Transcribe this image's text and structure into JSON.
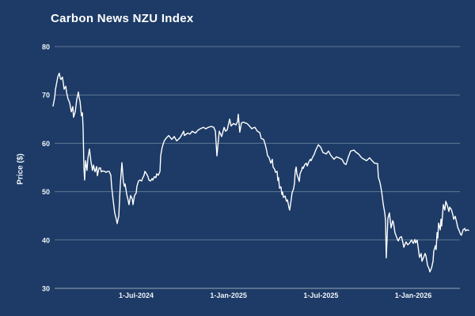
{
  "page": {
    "background_color": "#1d3b66"
  },
  "chart_data": {
    "type": "line",
    "title": "Carbon News NZU Index",
    "xlabel": "",
    "ylabel": "Price ($)",
    "ylim": [
      30,
      80
    ],
    "xlim_years": [
      2024.05,
      2026.25
    ],
    "grid": "horizontal-only",
    "legend_position": "none",
    "colors": {
      "background": "#1d3b66",
      "line": "#ffffff",
      "gridline": "rgba(255,255,255,0.30)",
      "axis_baseline": "rgba(255,255,255,0.55)",
      "tick_text": "#eef2f8",
      "title_text": "#ffffff"
    },
    "y_ticks": [
      30,
      40,
      50,
      60,
      70,
      80
    ],
    "x_ticks": [
      {
        "value": 2024.5,
        "label": "1-Jul-2024"
      },
      {
        "value": 2025.0,
        "label": "1-Jan-2025"
      },
      {
        "value": 2025.5,
        "label": "1-Jul-2025"
      },
      {
        "value": 2026.0,
        "label": "1-Jan-2026"
      }
    ],
    "series": [
      {
        "name": "NZU Index",
        "points": [
          [
            2024.05,
            67.7
          ],
          [
            2024.059,
            69.5
          ],
          [
            2024.063,
            71.1
          ],
          [
            2024.067,
            72.0
          ],
          [
            2024.076,
            73.8
          ],
          [
            2024.084,
            74.5
          ],
          [
            2024.089,
            73.5
          ],
          [
            2024.093,
            73.2
          ],
          [
            2024.101,
            73.7
          ],
          [
            2024.11,
            71.2
          ],
          [
            2024.119,
            71.8
          ],
          [
            2024.123,
            70.6
          ],
          [
            2024.131,
            69.2
          ],
          [
            2024.14,
            68.4
          ],
          [
            2024.149,
            66.5
          ],
          [
            2024.157,
            67.6
          ],
          [
            2024.161,
            65.4
          ],
          [
            2024.17,
            66.5
          ],
          [
            2024.179,
            69.2
          ],
          [
            2024.187,
            70.6
          ],
          [
            2024.191,
            69.5
          ],
          [
            2024.196,
            68.7
          ],
          [
            2024.204,
            65.7
          ],
          [
            2024.209,
            66.3
          ],
          [
            2024.213,
            63.0
          ],
          [
            2024.217,
            55.0
          ],
          [
            2024.221,
            52.4
          ],
          [
            2024.226,
            56.4
          ],
          [
            2024.234,
            54.4
          ],
          [
            2024.239,
            57.0
          ],
          [
            2024.247,
            58.8
          ],
          [
            2024.256,
            56.0
          ],
          [
            2024.264,
            54.4
          ],
          [
            2024.269,
            55.5
          ],
          [
            2024.277,
            54.1
          ],
          [
            2024.286,
            55.2
          ],
          [
            2024.29,
            53.3
          ],
          [
            2024.299,
            54.9
          ],
          [
            2024.307,
            54.9
          ],
          [
            2024.311,
            54.1
          ],
          [
            2024.32,
            54.3
          ],
          [
            2024.329,
            54.2
          ],
          [
            2024.337,
            54.0
          ],
          [
            2024.346,
            54.2
          ],
          [
            2024.354,
            54.2
          ],
          [
            2024.363,
            53.4
          ],
          [
            2024.367,
            51.1
          ],
          [
            2024.376,
            48.0
          ],
          [
            2024.384,
            45.6
          ],
          [
            2024.393,
            44.2
          ],
          [
            2024.397,
            43.4
          ],
          [
            2024.406,
            45.0
          ],
          [
            2024.414,
            51.3
          ],
          [
            2024.423,
            56.0
          ],
          [
            2024.431,
            52.0
          ],
          [
            2024.436,
            51.1
          ],
          [
            2024.44,
            51.6
          ],
          [
            2024.449,
            49.4
          ],
          [
            2024.457,
            48.1
          ],
          [
            2024.461,
            47.3
          ],
          [
            2024.47,
            49.2
          ],
          [
            2024.479,
            48.5
          ],
          [
            2024.483,
            47.3
          ],
          [
            2024.491,
            49.2
          ],
          [
            2024.5,
            49.7
          ],
          [
            2024.504,
            51.1
          ],
          [
            2024.513,
            52.2
          ],
          [
            2024.521,
            52.4
          ],
          [
            2024.53,
            52.2
          ],
          [
            2024.534,
            52.7
          ],
          [
            2024.543,
            53.4
          ],
          [
            2024.547,
            54.2
          ],
          [
            2024.556,
            53.7
          ],
          [
            2024.564,
            53.1
          ],
          [
            2024.569,
            52.4
          ],
          [
            2024.577,
            52.2
          ],
          [
            2024.586,
            52.7
          ],
          [
            2024.59,
            52.4
          ],
          [
            2024.599,
            53.1
          ],
          [
            2024.607,
            52.9
          ],
          [
            2024.611,
            53.7
          ],
          [
            2024.62,
            53.4
          ],
          [
            2024.629,
            54.2
          ],
          [
            2024.633,
            57.5
          ],
          [
            2024.641,
            59.2
          ],
          [
            2024.65,
            60.3
          ],
          [
            2024.654,
            60.6
          ],
          [
            2024.663,
            61.1
          ],
          [
            2024.676,
            61.6
          ],
          [
            2024.693,
            60.8
          ],
          [
            2024.706,
            61.4
          ],
          [
            2024.719,
            60.5
          ],
          [
            2024.736,
            61.1
          ],
          [
            2024.749,
            61.9
          ],
          [
            2024.757,
            62.5
          ],
          [
            2024.761,
            61.6
          ],
          [
            2024.779,
            62.1
          ],
          [
            2024.791,
            61.9
          ],
          [
            2024.804,
            62.5
          ],
          [
            2024.821,
            62.1
          ],
          [
            2024.834,
            62.7
          ],
          [
            2024.847,
            63.0
          ],
          [
            2024.864,
            63.3
          ],
          [
            2024.877,
            63.0
          ],
          [
            2024.89,
            63.3
          ],
          [
            2024.907,
            63.5
          ],
          [
            2024.92,
            63.3
          ],
          [
            2024.929,
            62.5
          ],
          [
            2024.933,
            60.0
          ],
          [
            2024.937,
            57.4
          ],
          [
            2024.946,
            61.0
          ],
          [
            2024.95,
            62.5
          ],
          [
            2024.963,
            61.4
          ],
          [
            2024.976,
            63.3
          ],
          [
            2024.984,
            62.5
          ],
          [
            2024.993,
            62.8
          ],
          [
            2025.006,
            65.0
          ],
          [
            2025.014,
            63.6
          ],
          [
            2025.027,
            64.1
          ],
          [
            2025.04,
            63.8
          ],
          [
            2025.049,
            64.5
          ],
          [
            2025.053,
            66.0
          ],
          [
            2025.061,
            62.3
          ],
          [
            2025.07,
            64.2
          ],
          [
            2025.079,
            64.4
          ],
          [
            2025.091,
            64.2
          ],
          [
            2025.1,
            64.1
          ],
          [
            2025.113,
            63.6
          ],
          [
            2025.126,
            63.0
          ],
          [
            2025.134,
            63.2
          ],
          [
            2025.143,
            63.3
          ],
          [
            2025.156,
            62.5
          ],
          [
            2025.169,
            62.2
          ],
          [
            2025.177,
            61.0
          ],
          [
            2025.19,
            60.8
          ],
          [
            2025.199,
            59.7
          ],
          [
            2025.207,
            58.4
          ],
          [
            2025.211,
            57.5
          ],
          [
            2025.22,
            57.0
          ],
          [
            2025.229,
            55.9
          ],
          [
            2025.237,
            56.7
          ],
          [
            2025.241,
            55.1
          ],
          [
            2025.25,
            54.6
          ],
          [
            2025.254,
            54.0
          ],
          [
            2025.263,
            54.2
          ],
          [
            2025.267,
            52.3
          ],
          [
            2025.271,
            52.9
          ],
          [
            2025.276,
            50.7
          ],
          [
            2025.284,
            51.0
          ],
          [
            2025.289,
            49.4
          ],
          [
            2025.293,
            49.9
          ],
          [
            2025.297,
            48.8
          ],
          [
            2025.306,
            49.1
          ],
          [
            2025.314,
            48.0
          ],
          [
            2025.319,
            48.3
          ],
          [
            2025.327,
            46.7
          ],
          [
            2025.331,
            46.2
          ],
          [
            2025.336,
            47.5
          ],
          [
            2025.34,
            48.6
          ],
          [
            2025.344,
            49.7
          ],
          [
            2025.353,
            50.7
          ],
          [
            2025.357,
            51.8
          ],
          [
            2025.361,
            54.2
          ],
          [
            2025.366,
            55.1
          ],
          [
            2025.37,
            53.7
          ],
          [
            2025.379,
            52.6
          ],
          [
            2025.383,
            52.1
          ],
          [
            2025.387,
            53.7
          ],
          [
            2025.396,
            54.5
          ],
          [
            2025.4,
            55.1
          ],
          [
            2025.404,
            54.8
          ],
          [
            2025.413,
            55.6
          ],
          [
            2025.421,
            55.9
          ],
          [
            2025.426,
            55.3
          ],
          [
            2025.434,
            56.1
          ],
          [
            2025.443,
            56.7
          ],
          [
            2025.447,
            56.4
          ],
          [
            2025.456,
            57.2
          ],
          [
            2025.464,
            57.7
          ],
          [
            2025.469,
            58.3
          ],
          [
            2025.477,
            59.0
          ],
          [
            2025.486,
            59.7
          ],
          [
            2025.494,
            59.4
          ],
          [
            2025.499,
            59.2
          ],
          [
            2025.511,
            58.1
          ],
          [
            2025.529,
            57.8
          ],
          [
            2025.541,
            58.4
          ],
          [
            2025.554,
            57.5
          ],
          [
            2025.571,
            56.7
          ],
          [
            2025.584,
            57.2
          ],
          [
            2025.597,
            57.0
          ],
          [
            2025.614,
            56.7
          ],
          [
            2025.627,
            55.8
          ],
          [
            2025.636,
            55.6
          ],
          [
            2025.649,
            57.2
          ],
          [
            2025.661,
            58.4
          ],
          [
            2025.679,
            58.6
          ],
          [
            2025.691,
            58.1
          ],
          [
            2025.704,
            57.8
          ],
          [
            2025.721,
            57.0
          ],
          [
            2025.734,
            56.7
          ],
          [
            2025.747,
            56.4
          ],
          [
            2025.764,
            57.0
          ],
          [
            2025.777,
            56.4
          ],
          [
            2025.79,
            55.9
          ],
          [
            2025.807,
            55.8
          ],
          [
            2025.811,
            53.0
          ],
          [
            2025.82,
            51.9
          ],
          [
            2025.829,
            50.0
          ],
          [
            2025.837,
            47.5
          ],
          [
            2025.846,
            45.5
          ],
          [
            2025.85,
            44.0
          ],
          [
            2025.854,
            36.3
          ],
          [
            2025.863,
            44.5
          ],
          [
            2025.871,
            45.6
          ],
          [
            2025.88,
            42.5
          ],
          [
            2025.889,
            44.0
          ],
          [
            2025.893,
            43.6
          ],
          [
            2025.901,
            41.5
          ],
          [
            2025.906,
            41.0
          ],
          [
            2025.914,
            40.2
          ],
          [
            2025.919,
            39.8
          ],
          [
            2025.927,
            40.5
          ],
          [
            2025.936,
            40.7
          ],
          [
            2025.944,
            39.5
          ],
          [
            2025.949,
            38.5
          ],
          [
            2025.957,
            39.3
          ],
          [
            2025.961,
            39.6
          ],
          [
            2025.97,
            39.0
          ],
          [
            2025.979,
            39.3
          ],
          [
            2025.987,
            39.8
          ],
          [
            2025.991,
            40.0
          ],
          [
            2026.0,
            39.3
          ],
          [
            2026.009,
            40.1
          ],
          [
            2026.013,
            39.4
          ],
          [
            2026.021,
            40.0
          ],
          [
            2026.026,
            38.6
          ],
          [
            2026.034,
            36.4
          ],
          [
            2026.043,
            37.2
          ],
          [
            2026.047,
            35.6
          ],
          [
            2026.056,
            36.4
          ],
          [
            2026.064,
            37.2
          ],
          [
            2026.069,
            36.7
          ],
          [
            2026.077,
            34.8
          ],
          [
            2026.086,
            34.0
          ],
          [
            2026.09,
            33.4
          ],
          [
            2026.099,
            34.2
          ],
          [
            2026.107,
            35.6
          ],
          [
            2026.111,
            37.7
          ],
          [
            2026.12,
            38.8
          ],
          [
            2026.124,
            38.0
          ],
          [
            2026.129,
            41.5
          ],
          [
            2026.133,
            40.4
          ],
          [
            2026.137,
            43.5
          ],
          [
            2026.146,
            42.1
          ],
          [
            2026.15,
            44.3
          ],
          [
            2026.154,
            42.9
          ],
          [
            2026.163,
            47.3
          ],
          [
            2026.171,
            46.2
          ],
          [
            2026.176,
            48.0
          ],
          [
            2026.184,
            47.2
          ],
          [
            2026.193,
            45.9
          ],
          [
            2026.197,
            46.8
          ],
          [
            2026.206,
            46.3
          ],
          [
            2026.214,
            45.3
          ],
          [
            2026.219,
            44.3
          ],
          [
            2026.227,
            44.9
          ],
          [
            2026.236,
            43.5
          ],
          [
            2026.24,
            42.7
          ],
          [
            2026.249,
            41.9
          ],
          [
            2026.257,
            41.1
          ],
          [
            2026.261,
            41.0
          ],
          [
            2026.27,
            42.1
          ],
          [
            2026.279,
            42.4
          ],
          [
            2026.283,
            41.9
          ],
          [
            2026.291,
            42.1
          ],
          [
            2026.3,
            42.0
          ]
        ]
      }
    ]
  }
}
